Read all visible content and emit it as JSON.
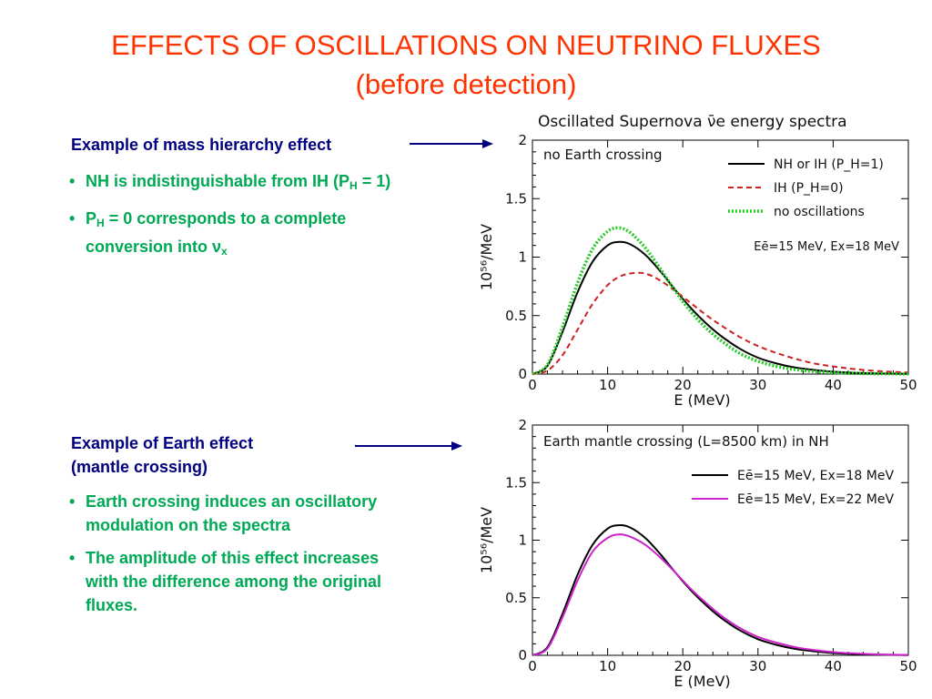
{
  "slide": {
    "title": "EFFECTS OF OSCILLATIONS ON NEUTRINO FLUXES",
    "subtitle": "(before detection)"
  },
  "left": {
    "block1": {
      "heading": "Example of mass hierarchy effect",
      "b1_a": "NH is indistinguishable from IH (P",
      "b1_sub": "H",
      "b1_b": " = 1)",
      "b2_a": "P",
      "b2_sub": "H",
      "b2_b": " = 0 corresponds to a complete conversion into ν",
      "b2_sub2": "x"
    },
    "block2": {
      "heading_l1": "Example of Earth effect",
      "heading_l2": "(mantle crossing)",
      "b1": "Earth crossing induces an oscillatory modulation on the spectra",
      "b2": "The amplitude of this effect increases with the difference among the original fluxes."
    }
  },
  "colors": {
    "title": "#ff3300",
    "heading": "#000080",
    "bullet": "#00aa55",
    "nh": "#000000",
    "ih": "#cc2222",
    "noosc": "#22cc22",
    "ex22": "#cc22cc"
  },
  "chart_data": [
    {
      "type": "line",
      "title": "Oscillated Supernova ν̄e energy spectra",
      "annotation": "no Earth crossing",
      "note": "Eē=15 MeV, Ex=18 MeV",
      "xlabel": "E (MeV)",
      "ylabel": "10⁵⁶/MeV",
      "xlim": [
        0,
        50
      ],
      "ylim": [
        0,
        2
      ],
      "xticks": [
        "0",
        "10",
        "20",
        "30",
        "40",
        "50"
      ],
      "yticks": [
        "0",
        "0.5",
        "1",
        "1.5",
        "2"
      ],
      "legend_position": "top-right",
      "x": [
        0,
        2,
        4,
        6,
        8,
        10,
        11.5,
        13,
        15,
        17,
        19,
        21,
        23,
        25,
        27.5,
        30,
        32.5,
        35,
        37.5,
        40,
        42.5,
        45,
        47.5,
        50
      ],
      "series": [
        {
          "name": "NH or IH (P_H=1)",
          "style": "solid",
          "values": [
            0,
            0.07,
            0.36,
            0.7,
            0.96,
            1.1,
            1.13,
            1.11,
            1.02,
            0.88,
            0.72,
            0.57,
            0.44,
            0.33,
            0.22,
            0.14,
            0.09,
            0.055,
            0.035,
            0.02,
            0.012,
            0.007,
            0.004,
            0.002
          ]
        },
        {
          "name": "IH (P_H=0)",
          "style": "dashed",
          "values": [
            0,
            0.03,
            0.16,
            0.38,
            0.6,
            0.76,
            0.83,
            0.86,
            0.86,
            0.8,
            0.71,
            0.61,
            0.51,
            0.42,
            0.32,
            0.24,
            0.18,
            0.13,
            0.09,
            0.065,
            0.045,
            0.03,
            0.02,
            0.013
          ]
        },
        {
          "name": "no oscillations",
          "style": "dotted",
          "values": [
            0,
            0.08,
            0.4,
            0.78,
            1.07,
            1.22,
            1.25,
            1.21,
            1.08,
            0.9,
            0.71,
            0.54,
            0.4,
            0.29,
            0.18,
            0.11,
            0.065,
            0.038,
            0.022,
            0.012,
            0.007,
            0.004,
            0.002,
            0.001
          ]
        }
      ]
    },
    {
      "type": "line",
      "title": "",
      "annotation": "Earth mantle crossing (L=8500 km) in NH",
      "xlabel": "E (MeV)",
      "ylabel": "10⁵⁶/MeV",
      "xlim": [
        0,
        50
      ],
      "ylim": [
        0,
        2
      ],
      "xticks": [
        "0",
        "10",
        "20",
        "30",
        "40",
        "50"
      ],
      "yticks": [
        "0",
        "0.5",
        "1",
        "1.5",
        "2"
      ],
      "legend_position": "top-right",
      "x": [
        0,
        2,
        4,
        6,
        8,
        10,
        11.5,
        13,
        15,
        17,
        19,
        21,
        23,
        25,
        27.5,
        30,
        32.5,
        35,
        37.5,
        40,
        42.5,
        45,
        47.5,
        50
      ],
      "series": [
        {
          "name": "Eē=15 MeV, Ex=18 MeV",
          "style": "solid",
          "values": [
            0,
            0.07,
            0.36,
            0.7,
            0.96,
            1.1,
            1.13,
            1.11,
            1.02,
            0.88,
            0.72,
            0.57,
            0.44,
            0.33,
            0.22,
            0.14,
            0.09,
            0.055,
            0.035,
            0.02,
            0.012,
            0.007,
            0.004,
            0.002
          ]
        },
        {
          "name": "Eē=15 MeV, Ex=22 MeV",
          "style": "solid-wiggly",
          "values": [
            0,
            0.06,
            0.33,
            0.65,
            0.9,
            1.02,
            1.05,
            1.03,
            0.96,
            0.85,
            0.72,
            0.58,
            0.46,
            0.35,
            0.24,
            0.16,
            0.11,
            0.07,
            0.045,
            0.028,
            0.017,
            0.01,
            0.006,
            0.003
          ]
        }
      ]
    }
  ]
}
